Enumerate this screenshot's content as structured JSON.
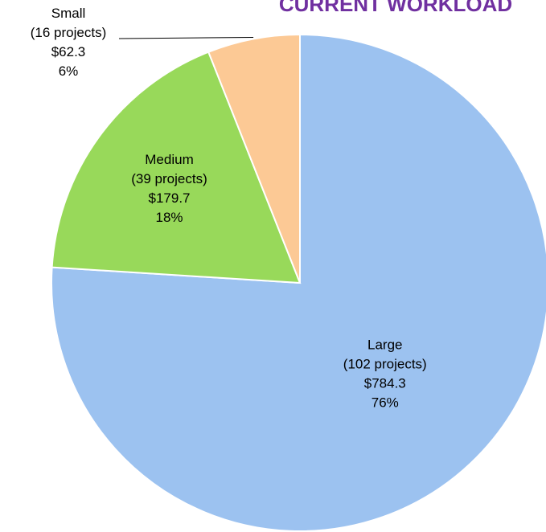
{
  "chart_data": {
    "type": "pie",
    "title": "CURRENT WORKLOAD",
    "categories": [
      "Large",
      "Medium",
      "Small"
    ],
    "values": [
      76,
      18,
      6
    ],
    "value_labels": [
      "76%",
      "18%",
      "6%"
    ],
    "project_labels": [
      "(102 projects)",
      "(39 projects)",
      "(16 projects)"
    ],
    "amount_labels": [
      "$784.3",
      "$179.7",
      "$62.3"
    ],
    "colors": [
      "#9cc2f0",
      "#98d95a",
      "#fcc995"
    ]
  }
}
